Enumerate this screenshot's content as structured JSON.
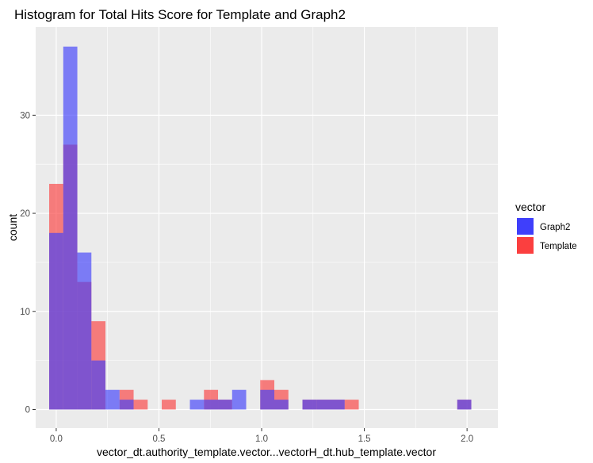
{
  "chart_data": {
    "type": "bar",
    "subtype": "histogram-overlay",
    "title": "Histogram for Total Hits Score for Template and Graph2",
    "xlabel": "vector_dt.authority_template.vector...vectorH_dt.hub_template.vector",
    "ylabel": "count",
    "xlim": [
      -0.1,
      2.15
    ],
    "ylim": [
      -1.9,
      39.0
    ],
    "bin_width": 0.0685,
    "x_ticks": [
      {
        "value": 0.0,
        "label": "0.0"
      },
      {
        "value": 0.5,
        "label": "0.5"
      },
      {
        "value": 1.0,
        "label": "1.0"
      },
      {
        "value": 1.5,
        "label": "1.5"
      },
      {
        "value": 2.0,
        "label": "2.0"
      }
    ],
    "y_ticks": [
      {
        "value": 0,
        "label": "0"
      },
      {
        "value": 10,
        "label": "10"
      },
      {
        "value": 20,
        "label": "20"
      },
      {
        "value": 30,
        "label": "30"
      }
    ],
    "grid": true,
    "legend": {
      "title": "vector",
      "position": "right"
    },
    "overlap_color": "#7a33b8",
    "series": [
      {
        "name": "Graph2",
        "color": "#3f3ffb",
        "bin_centers": [
          0.0,
          0.0685,
          0.137,
          0.2055,
          0.274,
          0.3425,
          0.411,
          0.4795,
          0.548,
          0.6165,
          0.685,
          0.7535,
          0.822,
          0.8905,
          0.959,
          1.0275,
          1.096,
          1.1645,
          1.233,
          1.3015,
          1.37,
          1.4385,
          1.507,
          1.5755,
          1.644,
          1.7125,
          1.781,
          1.8495,
          1.918,
          1.9865
        ],
        "values": [
          18,
          37,
          16,
          5,
          2,
          1,
          0,
          0,
          0,
          0,
          1,
          1,
          1,
          2,
          0,
          2,
          1,
          0,
          1,
          1,
          1,
          0,
          0,
          0,
          0,
          0,
          0,
          0,
          0,
          1
        ]
      },
      {
        "name": "Template",
        "color": "#fb3f3f",
        "bin_centers": [
          0.0,
          0.0685,
          0.137,
          0.2055,
          0.274,
          0.3425,
          0.411,
          0.4795,
          0.548,
          0.6165,
          0.685,
          0.7535,
          0.822,
          0.8905,
          0.959,
          1.0275,
          1.096,
          1.1645,
          1.233,
          1.3015,
          1.37,
          1.4385,
          1.507,
          1.5755,
          1.644,
          1.7125,
          1.781,
          1.8495,
          1.918,
          1.9865
        ],
        "values": [
          23,
          27,
          13,
          9,
          0,
          2,
          1,
          0,
          1,
          0,
          0,
          2,
          1,
          0,
          0,
          3,
          2,
          0,
          1,
          1,
          1,
          1,
          0,
          0,
          0,
          0,
          0,
          0,
          0,
          1
        ]
      }
    ]
  }
}
